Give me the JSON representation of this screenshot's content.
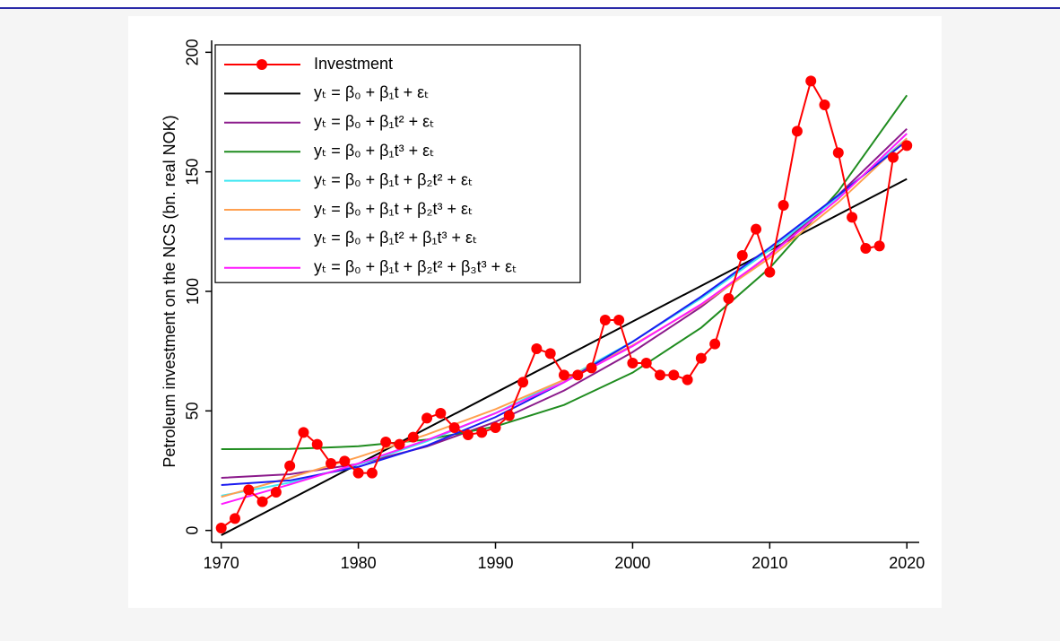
{
  "chart_data": {
    "type": "line",
    "y_label": "Petroleum investment on the NCS (bn. real NOK)",
    "xlim": [
      1969.3,
      2020.9
    ],
    "xticks": [
      1970,
      1980,
      1990,
      2000,
      2010,
      2020
    ],
    "ylim": [
      -5,
      205
    ],
    "yticks": [
      0,
      50,
      100,
      150,
      200
    ],
    "grid": false,
    "legend": "top-left",
    "series": [
      {
        "name": "Investment",
        "color": "#ff0000",
        "markers": true,
        "x": [
          1970,
          1971,
          1972,
          1973,
          1974,
          1975,
          1976,
          1977,
          1978,
          1979,
          1980,
          1981,
          1982,
          1983,
          1984,
          1985,
          1986,
          1987,
          1988,
          1989,
          1990,
          1991,
          1992,
          1993,
          1994,
          1995,
          1996,
          1997,
          1998,
          1999,
          2000,
          2001,
          2002,
          2003,
          2004,
          2005,
          2006,
          2007,
          2008,
          2009,
          2010,
          2011,
          2012,
          2013,
          2014,
          2015,
          2016,
          2017,
          2018,
          2019,
          2020
        ],
        "values": [
          1,
          5,
          17,
          12,
          16,
          27,
          41,
          36,
          28,
          29,
          24,
          24,
          37,
          36,
          39,
          47,
          49,
          43,
          40,
          41,
          43,
          48,
          62,
          76,
          74,
          65,
          65,
          68,
          88,
          88,
          70,
          70,
          65,
          65,
          63,
          72,
          78,
          97,
          115,
          126,
          108,
          136,
          167,
          188,
          178,
          158,
          131,
          118,
          119,
          156,
          161
        ]
      },
      {
        "name": "yₜ = β₀ + β₁t + εₜ",
        "color": "#000000",
        "markers": false,
        "x": [
          1970,
          1975,
          1980,
          1985,
          1990,
          1995,
          2000,
          2005,
          2010,
          2015,
          2020
        ],
        "values": [
          -2,
          12.9,
          27.8,
          42.7,
          57.6,
          72.5,
          87.4,
          102.3,
          117.2,
          132.1,
          147
        ]
      },
      {
        "name": "yₜ = β₀ + β₁t² + εₜ",
        "color": "#8b1a8b",
        "markers": false,
        "x": [
          1970,
          1975,
          1980,
          1985,
          1990,
          1995,
          2000,
          2005,
          2010,
          2015,
          2020
        ],
        "values": [
          22,
          23.5,
          27.8,
          35.1,
          45.4,
          58.5,
          74.6,
          93.5,
          115.4,
          140.3,
          168
        ]
      },
      {
        "name": "yₜ = β₀ + β₁t³ + εₜ",
        "color": "#1f8c1f",
        "markers": false,
        "x": [
          1970,
          1975,
          1980,
          1985,
          1990,
          1995,
          2000,
          2005,
          2010,
          2015,
          2020
        ],
        "values": [
          34,
          34.1,
          35.2,
          38,
          43.5,
          52.5,
          66,
          84.8,
          109.8,
          141.9,
          182
        ]
      },
      {
        "name": "yₜ = β₀ + β₁t + β₂t² + εₜ",
        "color": "#3ee6f2",
        "markers": false,
        "x": [
          1970,
          1975,
          1980,
          1985,
          1990,
          1995,
          2000,
          2005,
          2010,
          2015,
          2020
        ],
        "values": [
          14.5,
          20,
          27.6,
          37.3,
          49.1,
          63,
          79,
          97.1,
          117.3,
          139.6,
          164
        ]
      },
      {
        "name": "yₜ = β₀ + β₁t + β₂t³ + εₜ",
        "color": "#ffa050",
        "markers": false,
        "x": [
          1970,
          1975,
          1980,
          1985,
          1990,
          1995,
          2000,
          2005,
          2010,
          2015,
          2020
        ],
        "values": [
          14,
          22.1,
          30.7,
          40.1,
          50.7,
          63,
          77.4,
          94.3,
          114,
          137.2,
          164
        ]
      },
      {
        "name": "yₜ = β₀ + β₁t² + β₁t³ + εₜ",
        "color": "#1c1cf0",
        "markers": false,
        "x": [
          1970,
          1975,
          1980,
          1985,
          1990,
          1995,
          2000,
          2005,
          2010,
          2015,
          2020
        ],
        "values": [
          19,
          20.9,
          26.6,
          35.5,
          47.4,
          62,
          78.9,
          97.8,
          118.3,
          140.2,
          163
        ]
      },
      {
        "name": "yₜ = β₀ + β₁t + β₂t² + β₃t³ + εₜ",
        "color": "#ff1aff",
        "markers": false,
        "x": [
          1970,
          1975,
          1980,
          1985,
          1990,
          1995,
          2000,
          2005,
          2010,
          2015,
          2020
        ],
        "values": [
          11,
          19.2,
          28,
          37.8,
          49,
          62,
          77.1,
          94.6,
          115.1,
          138.7,
          166
        ]
      }
    ]
  }
}
